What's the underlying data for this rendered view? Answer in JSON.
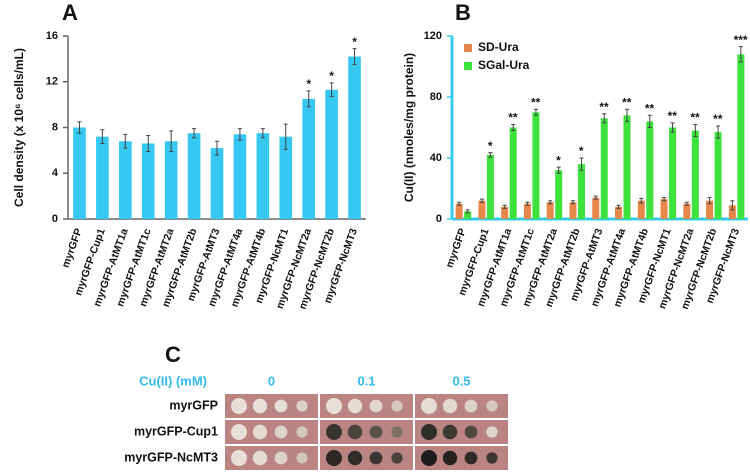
{
  "chart_data": [
    {
      "type": "bar",
      "panel_label": "A",
      "y_label": "Cell density (x 10⁶ cells/mL)",
      "categories": [
        "myrGFP",
        "myrGFP-Cup1",
        "myrGFP-AtMT1a",
        "myrGFP-AtMT1c",
        "myrGFP-AtMT2a",
        "myrGFP-AtMT2b",
        "myrGFP-AtMT3",
        "myrGFP-AtMT4a",
        "myrGFP-AtMT4b",
        "myrGFP-NcMT1",
        "myrGFP-NcMT2a",
        "myrGFP-NcMT2b",
        "myrGFP-NcMT3"
      ],
      "values": [
        8.0,
        7.2,
        6.8,
        6.6,
        6.8,
        7.5,
        6.2,
        7.4,
        7.5,
        7.2,
        10.5,
        11.3,
        14.2
      ],
      "errors": [
        0.5,
        0.6,
        0.6,
        0.7,
        0.9,
        0.4,
        0.6,
        0.5,
        0.4,
        1.1,
        0.7,
        0.6,
        0.7
      ],
      "annotations": [
        null,
        null,
        null,
        null,
        null,
        null,
        null,
        null,
        null,
        null,
        "*",
        "*",
        "*"
      ],
      "color": "#35c8f2",
      "axis_color": "#666666",
      "ylim": [
        0,
        16
      ],
      "yticks": [
        0,
        4,
        8,
        12,
        16
      ]
    },
    {
      "type": "grouped_bar",
      "panel_label": "B",
      "y_label": "Cu(II) (nmoles/mg protein)",
      "categories": [
        "myrGFP",
        "myrGFP-Cup1",
        "myrGFP-AtMT1a",
        "myrGFP-AtMT1c",
        "myrGFP-AtMT2a",
        "myrGFP-AtMT2b",
        "myrGFP-AtMT3",
        "myrGFP-AtMT4a",
        "myrGFP-AtMT4b",
        "myrGFP-NcMT1",
        "myrGFP-NcMT2a",
        "myrGFP-NcMT2b",
        "myrGFP-NcMT3"
      ],
      "series": [
        {
          "name": "SD-Ura",
          "color": "#e8874a",
          "values": [
            10,
            12,
            8,
            10,
            11,
            11,
            14,
            8,
            12,
            13,
            10,
            12,
            9
          ],
          "errors": [
            1,
            1,
            1,
            1,
            1,
            1,
            1,
            1,
            1.5,
            1,
            1,
            2,
            3
          ]
        },
        {
          "name": "SGal-Ura",
          "color": "#3de23d",
          "values": [
            5,
            42,
            60,
            70,
            32,
            36,
            66,
            68,
            64,
            60,
            58,
            57,
            108
          ],
          "errors": [
            1,
            1.5,
            2,
            2,
            2,
            4,
            3,
            4,
            4,
            3,
            4,
            4,
            5
          ]
        }
      ],
      "annotations": [
        null,
        "*",
        "**",
        "**",
        "*",
        "*",
        "**",
        "**",
        "**",
        "**",
        "**",
        "**",
        "***"
      ],
      "axis_color": "#33ccee",
      "legend": "top-left",
      "ylim": [
        0,
        120
      ],
      "yticks": [
        0,
        40,
        80,
        120
      ]
    }
  ],
  "spot_assay": {
    "panel_label": "C",
    "header": "Cu(II) (mM)",
    "columns": [
      "0",
      "0.1",
      "0.5"
    ],
    "rows": [
      "myrGFP",
      "myrGFP-Cup1",
      "myrGFP-NcMT3"
    ]
  }
}
